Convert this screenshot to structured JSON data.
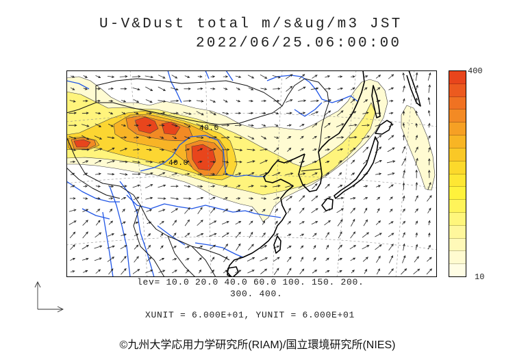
{
  "title": {
    "line1": "U-V&Dust total m/s&ug/m3 JST",
    "line2": "2022/06/25.06:00:00"
  },
  "map": {
    "contour_labels": [
      "40.0",
      "40.0"
    ],
    "colors": {
      "coastline": "#000000",
      "border": "#111111",
      "river": "#1f55e6",
      "grid": "#8c8c8c",
      "contour": "#3a3a3a",
      "wind_arrow": "#222222",
      "frame": "#000000"
    },
    "dust_fill": {
      "l10": "#fffbd2",
      "l20": "#fff47c",
      "l40": "#fcd632",
      "l60": "#f8b426",
      "l100": "#f28a24",
      "l300": "#e8451c"
    }
  },
  "colorbar": {
    "top_label": "400",
    "bottom_label": "10",
    "colors": [
      "#e8451c",
      "#ec5a1f",
      "#f07222",
      "#f38a24",
      "#f6a024",
      "#f8b524",
      "#fac826",
      "#fcd92b",
      "#fee733",
      "#fff23c",
      "#fff45a",
      "#fff67c",
      "#fff79c",
      "#fff9b8",
      "#fffbd0",
      "#fffde4"
    ]
  },
  "levels": {
    "line1": "lev= 10.0 20.0 40.0 60.0 100. 150. 200.",
    "line2": "300. 400."
  },
  "units": "XUNIT = 6.000E+01, YUNIT = 6.000E+01",
  "footer": "©九州大学応用力学研究所(RIAM)/国立環境研究所(NIES)"
}
